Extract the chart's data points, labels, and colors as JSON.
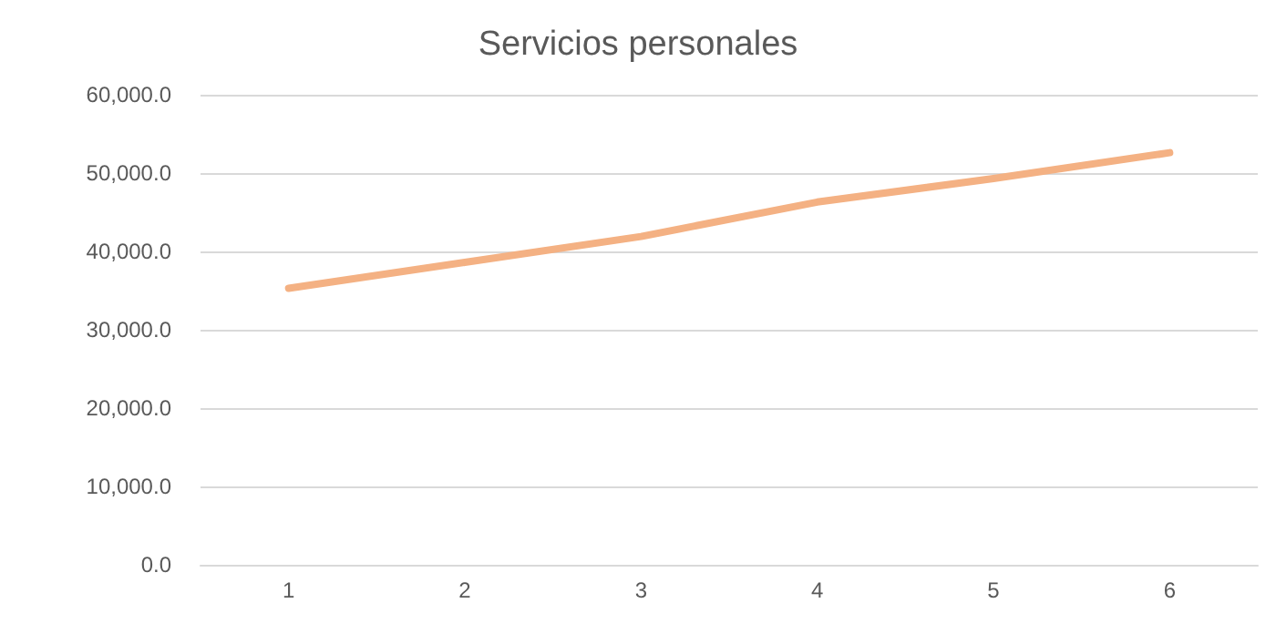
{
  "chart_data": {
    "type": "line",
    "title": "Servicios personales",
    "categories": [
      "1",
      "2",
      "3",
      "4",
      "5",
      "6"
    ],
    "series": [
      {
        "color": "#f4b183",
        "values": [
          35300,
          38600,
          41900,
          46300,
          49300,
          52600
        ]
      }
    ],
    "ylim": [
      0,
      60000
    ],
    "yticks": [
      {
        "value": 0,
        "label": "0.0"
      },
      {
        "value": 10000,
        "label": "10,000.0"
      },
      {
        "value": 20000,
        "label": "20,000.0"
      },
      {
        "value": 30000,
        "label": "30,000.0"
      },
      {
        "value": 40000,
        "label": "40,000.0"
      },
      {
        "value": 50000,
        "label": "50,000.0"
      },
      {
        "value": 60000,
        "label": "60,000.0"
      }
    ],
    "grid": "y",
    "marker": "none",
    "line_style": "solid"
  }
}
